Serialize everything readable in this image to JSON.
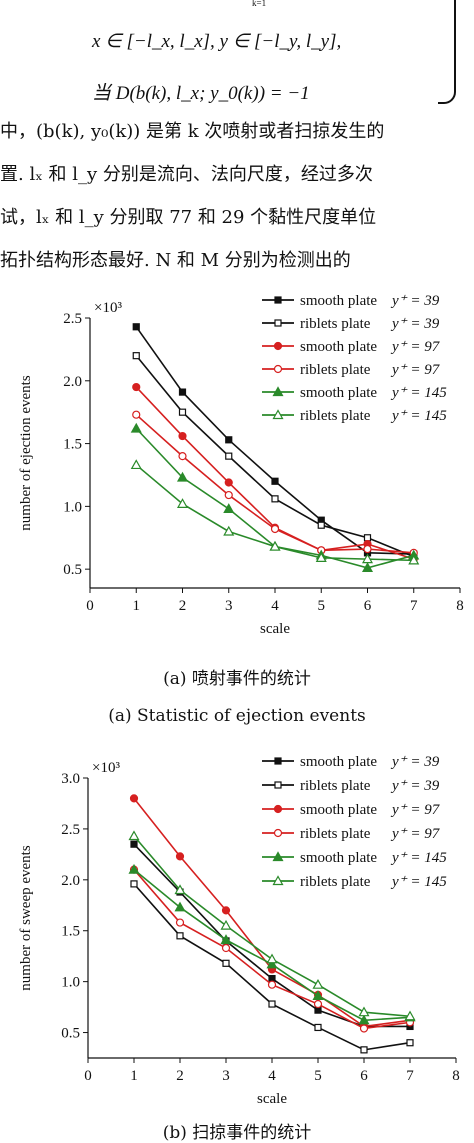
{
  "text": {
    "formula_top_sub": "k=1",
    "formula_line1": "x ∈ [−l_x, l_x], y ∈ [−l_y, l_y],",
    "formula_line2": "当 D(b(k), l_x; y_0(k)) = −1",
    "para_line1": "中，(b(k), y₀(k)) 是第 k 次喷射或者扫掠发生的",
    "para_line2": "置. lₓ 和 l_y 分别是流向、法向尺度，经过多次",
    "para_line3": "试，lₓ 和 l_y 分别取 77 和 29 个黏性尺度单位",
    "para_line4": "拓扑结构形态最好. N 和 M 分别为检测出的"
  },
  "captions": {
    "fig_a_cn": "(a) 喷射事件的统计",
    "fig_a_en": "(a) Statistic of ejection events",
    "fig_b_cn": "(b) 扫掠事件的统计"
  },
  "colors": {
    "black": "#111111",
    "red": "#d62020",
    "green": "#2a8a2a"
  },
  "chart_data": [
    {
      "type": "line",
      "xlabel": "scale",
      "ylabel": "number of ejection events",
      "y_multiplier": "×10³",
      "xlim": [
        0,
        8
      ],
      "ylim": [
        0.35,
        2.5
      ],
      "xticks": [
        0,
        1,
        2,
        3,
        4,
        5,
        6,
        7,
        8
      ],
      "yticks": [
        0.5,
        1.0,
        1.5,
        2.0,
        2.5
      ],
      "ytick_labels": [
        "0.5",
        "1.0",
        "1.5",
        "2.0",
        "2.5"
      ],
      "legend_position": "top-right",
      "x": [
        1,
        2,
        3,
        4,
        5,
        6,
        7
      ],
      "series": [
        {
          "name": "smooth plate",
          "yplus": "y⁺ = 39",
          "color": "black",
          "marker": "square-filled",
          "values": [
            2.43,
            1.91,
            1.53,
            1.2,
            0.89,
            0.63,
            0.62
          ]
        },
        {
          "name": "riblets plate",
          "yplus": "y⁺ = 39",
          "color": "black",
          "marker": "square-open",
          "values": [
            2.2,
            1.75,
            1.4,
            1.06,
            0.85,
            0.75,
            0.6
          ]
        },
        {
          "name": "smooth plate",
          "yplus": "y⁺ = 97",
          "color": "red",
          "marker": "circle-filled",
          "values": [
            1.95,
            1.56,
            1.19,
            0.83,
            0.65,
            0.7,
            0.58
          ]
        },
        {
          "name": "riblets plate",
          "yplus": "y⁺ = 97",
          "color": "red",
          "marker": "circle-open",
          "values": [
            1.73,
            1.4,
            1.09,
            0.82,
            0.65,
            0.66,
            0.63
          ]
        },
        {
          "name": "smooth plate",
          "yplus": "y⁺ = 145",
          "color": "green",
          "marker": "triangle-filled",
          "values": [
            1.62,
            1.23,
            0.98,
            0.68,
            0.61,
            0.51,
            0.61
          ]
        },
        {
          "name": "riblets plate",
          "yplus": "y⁺ = 145",
          "color": "green",
          "marker": "triangle-open",
          "values": [
            1.33,
            1.02,
            0.8,
            0.68,
            0.59,
            0.58,
            0.57
          ]
        }
      ]
    },
    {
      "type": "line",
      "xlabel": "scale",
      "ylabel": "number of sweep events",
      "y_multiplier": "×10³",
      "xlim": [
        0,
        8
      ],
      "ylim": [
        0.25,
        3.0
      ],
      "xticks": [
        0,
        1,
        2,
        3,
        4,
        5,
        6,
        7,
        8
      ],
      "yticks": [
        0.5,
        1.0,
        1.5,
        2.0,
        2.5,
        3.0
      ],
      "ytick_labels": [
        "0.5",
        "1.0",
        "1.5",
        "2.0",
        "2.5",
        "3.0"
      ],
      "legend_position": "top-right",
      "x": [
        1,
        2,
        3,
        4,
        5,
        6,
        7
      ],
      "series": [
        {
          "name": "smooth plate",
          "yplus": "y⁺ = 39",
          "color": "black",
          "marker": "square-filled",
          "values": [
            2.35,
            1.88,
            1.4,
            1.03,
            0.72,
            0.56,
            0.56
          ]
        },
        {
          "name": "riblets plate",
          "yplus": "y⁺ = 39",
          "color": "black",
          "marker": "square-open",
          "values": [
            1.96,
            1.45,
            1.18,
            0.78,
            0.55,
            0.33,
            0.4
          ]
        },
        {
          "name": "smooth plate",
          "yplus": "y⁺ = 97",
          "color": "red",
          "marker": "circle-filled",
          "values": [
            2.8,
            2.23,
            1.7,
            1.12,
            0.87,
            0.56,
            0.62
          ]
        },
        {
          "name": "riblets plate",
          "yplus": "y⁺ = 97",
          "color": "red",
          "marker": "circle-open",
          "values": [
            2.1,
            1.58,
            1.33,
            0.97,
            0.78,
            0.54,
            0.6
          ]
        },
        {
          "name": "smooth plate",
          "yplus": "y⁺ = 145",
          "color": "green",
          "marker": "triangle-filled",
          "values": [
            2.1,
            1.73,
            1.41,
            1.17,
            0.86,
            0.62,
            0.65
          ]
        },
        {
          "name": "riblets plate",
          "yplus": "y⁺ = 145",
          "color": "green",
          "marker": "triangle-open",
          "values": [
            2.43,
            1.9,
            1.55,
            1.22,
            0.97,
            0.7,
            0.66
          ]
        }
      ]
    }
  ]
}
